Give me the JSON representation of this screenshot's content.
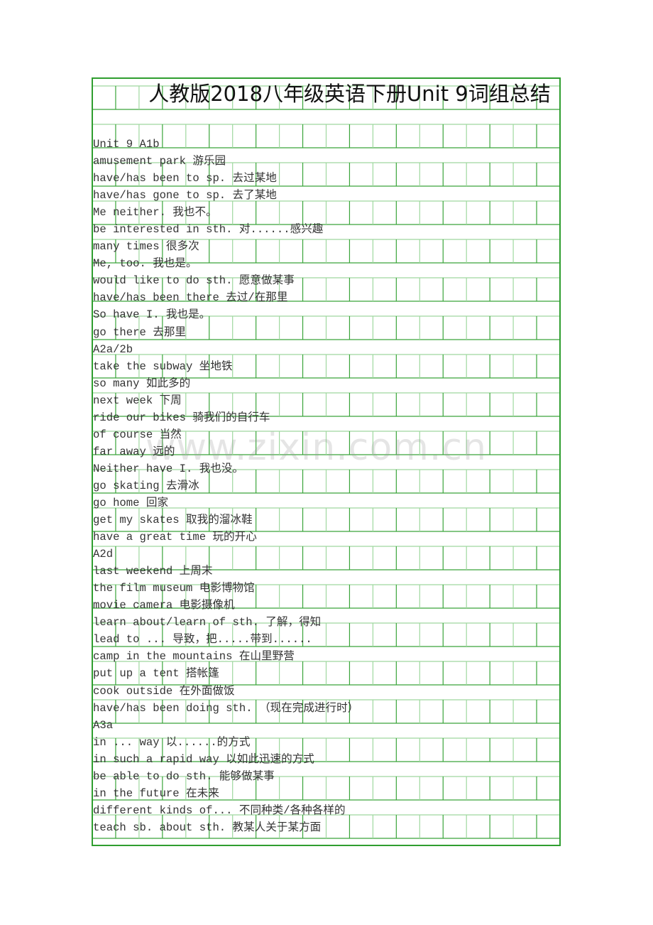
{
  "document": {
    "title": "人教版2018八年级英语下册Unit 9词组总结",
    "watermark": "www.zixin.com.cn",
    "grid_colors": {
      "border": "#2f9e2f",
      "line_dark": "#3aa53a",
      "line_light": "#9fd89f"
    },
    "lines": [
      "Unit 9 A1b",
      "amusement park 游乐园",
      "have/has been to sp. 去过某地",
      "have/has gone to sp. 去了某地",
      "Me neither. 我也不。",
      "be interested in sth. 对......感兴趣",
      "many times 很多次",
      "Me, too. 我也是。",
      "would like to do sth. 愿意做某事",
      "have/has been there 去过/在那里",
      "So have I. 我也是。",
      "go there 去那里",
      "A2a/2b",
      "take the subway 坐地铁",
      "so many 如此多的",
      "next week 下周",
      "ride our bikes 骑我们的自行车",
      "of course 当然",
      "far away 远的",
      "Neither have I. 我也没。",
      "go skating 去滑冰",
      "go home 回家",
      "get my skates 取我的溜冰鞋",
      "have a great time 玩的开心",
      "A2d",
      "last weekend 上周末",
      "the film museum 电影博物馆",
      "movie camera 电影摄像机",
      "learn about/learn of sth. 了解，得知",
      "lead to ... 导致，把.....带到......",
      "camp in the mountains 在山里野营",
      "put up a tent 搭帐篷",
      "cook outside 在外面做饭",
      "have/has been doing sth. （现在完成进行时）",
      "A3a",
      "in ... way 以......的方式",
      "in such a rapid way 以如此迅速的方式",
      "be able to do sth. 能够做某事",
      "in the future 在未来",
      "different kinds of... 不同种类/各种各样的",
      "teach sb. about sth. 教某人关于某方面"
    ]
  }
}
